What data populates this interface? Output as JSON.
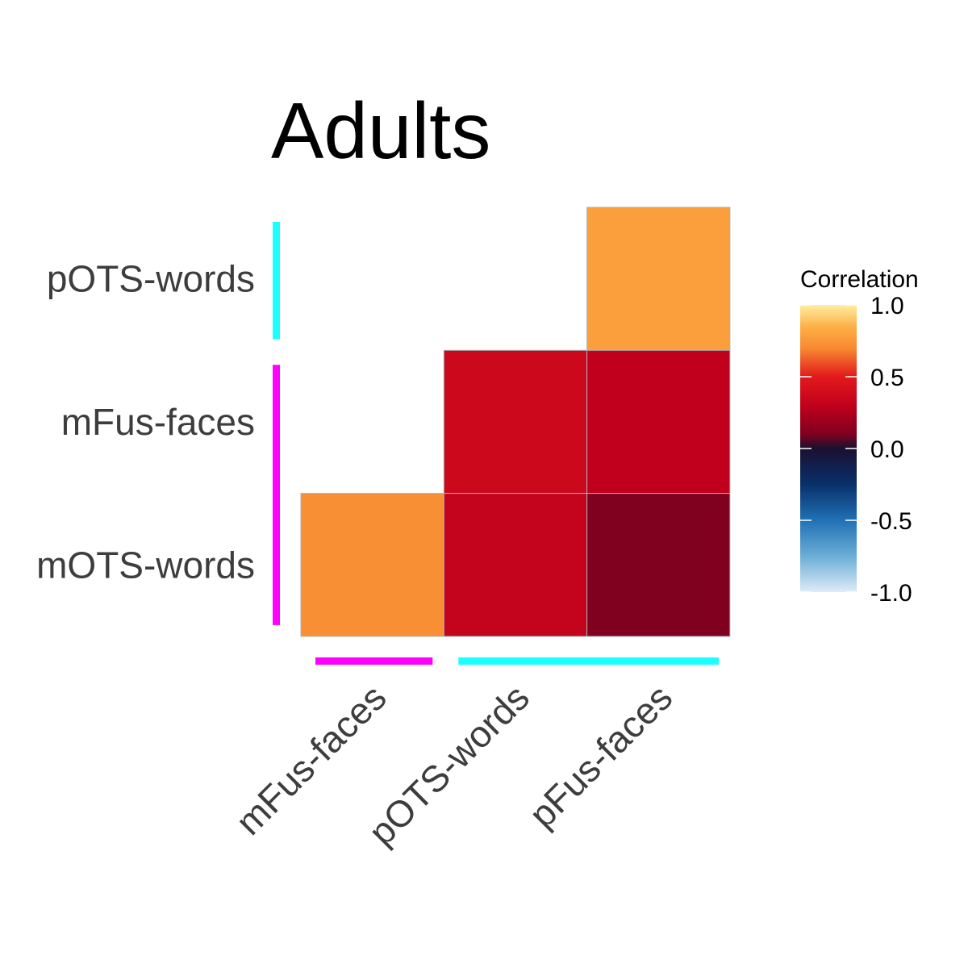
{
  "chart_data": {
    "type": "heatmap",
    "title": "Adults",
    "rows": [
      "pOTS-words",
      "mFus-faces",
      "mOTS-words"
    ],
    "columns": [
      "mFus-faces",
      "pOTS-words",
      "pFus-faces"
    ],
    "values": [
      [
        null,
        null,
        0.78
      ],
      [
        null,
        0.37,
        0.3
      ],
      [
        0.72,
        0.32,
        0.1
      ]
    ],
    "legend": {
      "title": "Correlation",
      "ticks": [
        "1.0",
        "0.5",
        "0.0",
        "-0.5",
        "-1.0"
      ],
      "tick_values": [
        1.0,
        0.5,
        0.0,
        -0.5,
        -1.0
      ],
      "range": [
        -1.0,
        1.0
      ],
      "colorscale": [
        [
          -1.0,
          "#deebf7"
        ],
        [
          -0.75,
          "#6baed6"
        ],
        [
          -0.5,
          "#2171b5"
        ],
        [
          -0.25,
          "#08306b"
        ],
        [
          0.0,
          "#1a1030"
        ],
        [
          0.1,
          "#800020"
        ],
        [
          0.3,
          "#c0001c"
        ],
        [
          0.5,
          "#e31a1c"
        ],
        [
          0.7,
          "#f88a32"
        ],
        [
          0.85,
          "#fdb147"
        ],
        [
          1.0,
          "#ffeda0"
        ]
      ]
    },
    "row_groups": [
      {
        "rows": [
          "pOTS-words"
        ],
        "color": "#1affff"
      },
      {
        "rows": [
          "mFus-faces",
          "mOTS-words"
        ],
        "color": "#ff00ff"
      }
    ],
    "column_groups": [
      {
        "columns": [
          "mFus-faces"
        ],
        "color": "#ff00ff"
      },
      {
        "columns": [
          "pOTS-words",
          "pFus-faces"
        ],
        "color": "#1affff"
      }
    ]
  }
}
